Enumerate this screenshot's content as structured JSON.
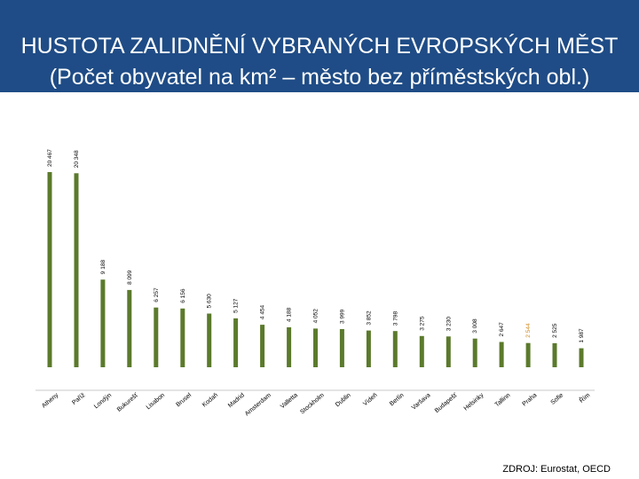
{
  "header": {
    "title_line1": "HUSTOTA ZALIDNĚNÍ VYBRANÝCH EVROPSKÝCH MĚST",
    "title_line2": "(Počet obyvatel na km² – město bez příměstských obl.)"
  },
  "source": "ZDROJ: Eurostat, OECD",
  "colors": {
    "header_bg": "#1f4c86",
    "bar": "#5b7a2c",
    "highlight_label": "#d08a1e"
  },
  "chart_data": {
    "type": "bar",
    "title": "HUSTOTA ZALIDNĚNÍ VYBRANÝCH EVROPSKÝCH MĚST",
    "subtitle": "(Počet obyvatel na km² – město bez příměstských obl.)",
    "xlabel": "",
    "ylabel": "",
    "ylim": [
      0,
      21000
    ],
    "grid": false,
    "legend": "none",
    "categories": [
      "Atheny",
      "Paříž",
      "Londýn",
      "Bukurešť",
      "Lisabon",
      "Brusel",
      "Kodaň",
      "Madrid",
      "Amsterdam",
      "Valletta",
      "Stockholm",
      "Dublin",
      "Vídeň",
      "Berlín",
      "Varšava",
      "Budapešť",
      "Helsinky",
      "Tallinn",
      "Praha",
      "Sofie",
      "Řím"
    ],
    "value_labels": [
      "20 467",
      "20 348",
      "9 188",
      "8 099",
      "6 257",
      "6 156",
      "5 630",
      "5 127",
      "4 454",
      "4 188",
      "4 052",
      "3 999",
      "3 852",
      "3 798",
      "3 275",
      "3 230",
      "3 008",
      "2 647",
      "2 544",
      "2 525",
      "1 987"
    ],
    "values": [
      20467,
      20348,
      9188,
      8099,
      6257,
      6156,
      5630,
      5127,
      4454,
      4188,
      4052,
      3999,
      3852,
      3798,
      3275,
      3230,
      3008,
      2647,
      2544,
      2525,
      1987
    ],
    "highlight_index": 18
  }
}
